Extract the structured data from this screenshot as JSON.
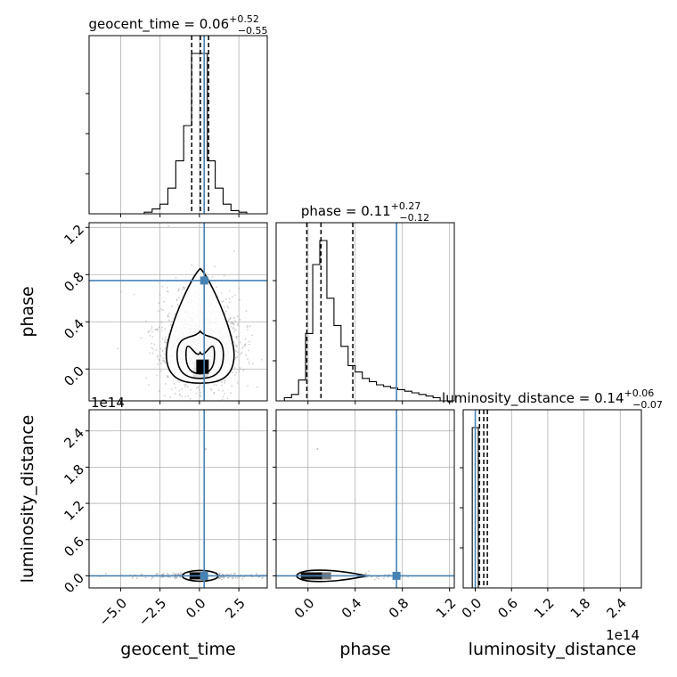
{
  "chart_data": {
    "type": "corner",
    "parameters": [
      "geocent_time",
      "phase",
      "luminosity_distance"
    ],
    "truths": {
      "geocent_time": 0.3,
      "phase": 0.75,
      "luminosity_distance": 0.0
    },
    "offset_label": "1e14",
    "titles": [
      {
        "param": "geocent_time",
        "name": "geocent_time = 0.06",
        "sup": "+0.52",
        "sub": "−0.55"
      },
      {
        "param": "phase",
        "name": "phase = 0.11",
        "sup": "+0.27",
        "sub": "−0.12"
      },
      {
        "param": "luminosity_distance",
        "name": "luminosity_distance = 0.14",
        "sup": "+0.06",
        "sub": "−0.07"
      }
    ],
    "axes": {
      "geocent_time": {
        "lim": [
          -7.0,
          4.3
        ],
        "ticks": [
          -5.0,
          -2.5,
          0.0,
          2.5
        ],
        "tick_labels": [
          "−5.0",
          "−2.5",
          "0.0",
          "2.5"
        ]
      },
      "phase": {
        "lim": [
          -0.27,
          1.24
        ],
        "ticks": [
          0.0,
          0.4,
          0.8,
          1.2
        ],
        "tick_labels": [
          "0.0",
          "0.4",
          "0.8",
          "1.2"
        ]
      },
      "luminosity_distance": {
        "lim": [
          -0.2,
          2.75
        ],
        "ticks": [
          0.0,
          0.6,
          1.2,
          1.8,
          2.4
        ],
        "tick_labels": [
          "0.0",
          "0.6",
          "1.2",
          "1.8",
          "2.4"
        ]
      }
    },
    "histograms": {
      "geocent_time": {
        "edges": [
          -4.0,
          -3.5,
          -3.0,
          -2.5,
          -2.0,
          -1.5,
          -1.0,
          -0.5,
          0.0,
          0.5,
          1.0,
          1.5,
          2.0,
          2.5,
          3.0,
          3.5
        ],
        "counts": [
          0.0,
          0.01,
          0.03,
          0.06,
          0.16,
          0.33,
          0.55,
          1.0,
          1.0,
          0.33,
          0.16,
          0.06,
          0.02,
          0.01,
          0.0
        ],
        "quantiles": [
          -0.49,
          0.06,
          0.58
        ]
      },
      "phase": {
        "edges": [
          -0.2,
          -0.14,
          -0.08,
          -0.02,
          0.04,
          0.1,
          0.16,
          0.22,
          0.28,
          0.34,
          0.4,
          0.46,
          0.52,
          0.58,
          0.64,
          0.7,
          0.76,
          0.82,
          0.88,
          0.94,
          1.0,
          1.06,
          1.12
        ],
        "counts": [
          0.02,
          0.04,
          0.13,
          0.42,
          0.85,
          1.0,
          0.64,
          0.47,
          0.34,
          0.22,
          0.18,
          0.14,
          0.12,
          0.1,
          0.09,
          0.08,
          0.07,
          0.06,
          0.05,
          0.04,
          0.03,
          0.02
        ],
        "quantiles": [
          -0.01,
          0.11,
          0.38
        ]
      },
      "luminosity_distance": {
        "edges": [
          -0.1,
          -0.05,
          0.0,
          0.05,
          0.1
        ],
        "counts": [
          0.0,
          1.0,
          1.0,
          0.0
        ],
        "quantiles": [
          0.07,
          0.14,
          0.2
        ]
      }
    },
    "grid": true
  }
}
